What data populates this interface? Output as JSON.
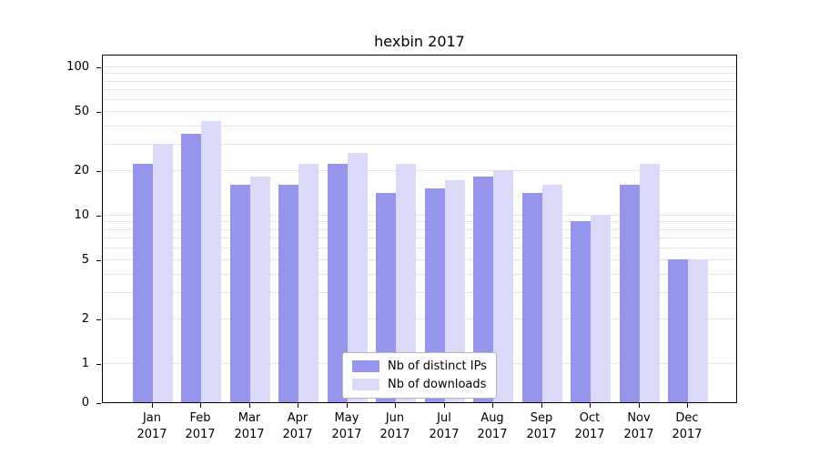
{
  "chart_data": {
    "type": "bar",
    "title": "hexbin 2017",
    "categories": [
      "Jan",
      "Feb",
      "Mar",
      "Apr",
      "May",
      "Jun",
      "Jul",
      "Aug",
      "Sep",
      "Oct",
      "Nov",
      "Dec"
    ],
    "year_label": "2017",
    "series": [
      {
        "name": "Nb of distinct IPs",
        "color": "#9595ec",
        "values": [
          22,
          35,
          16,
          16,
          22,
          14,
          15,
          18,
          14,
          9,
          16,
          5
        ]
      },
      {
        "name": "Nb of downloads",
        "color": "#dadaf8",
        "values": [
          30,
          43,
          18,
          22,
          26,
          22,
          17,
          20,
          16,
          10,
          22,
          5
        ]
      }
    ],
    "y_axis": {
      "scale": "symlog",
      "ticks": [
        0,
        1,
        2,
        5,
        10,
        20,
        50,
        100
      ],
      "gridlines": [
        1,
        2,
        3,
        4,
        5,
        6,
        7,
        8,
        9,
        10,
        20,
        30,
        40,
        50,
        60,
        70,
        80,
        90,
        100
      ],
      "ylim": [
        0,
        120
      ]
    },
    "legend": {
      "position": "lower center",
      "entries": [
        "Nb of distinct IPs",
        "Nb of downloads"
      ]
    }
  }
}
